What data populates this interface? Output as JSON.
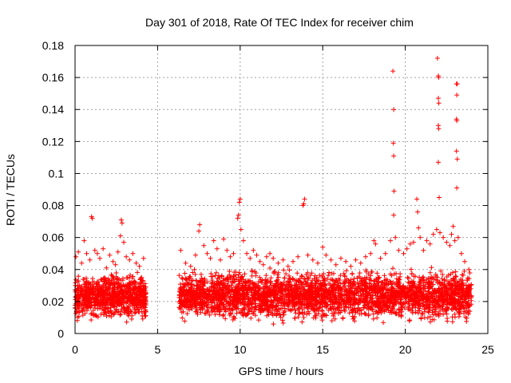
{
  "chart_data": {
    "type": "scatter",
    "title": "Day 301 of 2018, Rate Of TEC Index for receiver chim",
    "xlabel": "GPS time / hours",
    "ylabel": "ROTI / TECUs",
    "xlim": [
      0,
      25
    ],
    "ylim": [
      0,
      0.18
    ],
    "x_ticks": [
      0,
      5,
      10,
      15,
      20,
      25
    ],
    "x_tick_labels": [
      "0",
      "5",
      "10",
      "15",
      "20",
      "25"
    ],
    "y_ticks": [
      0,
      0.02,
      0.04,
      0.06,
      0.08,
      0.1,
      0.12,
      0.14,
      0.16,
      0.18
    ],
    "y_tick_labels": [
      "0",
      "0.02",
      "0.04",
      "0.06",
      "0.08",
      "0.1",
      "0.12",
      "0.14",
      "0.16",
      "0.18"
    ],
    "grid": true,
    "marker": "plus",
    "color": "#ff0000",
    "dense_bands": [
      {
        "x_start": 0.0,
        "x_end": 4.3,
        "y_low": 0.006,
        "y_high": 0.036,
        "density": 900
      },
      {
        "x_start": 6.3,
        "x_end": 24.0,
        "y_low": 0.005,
        "y_high": 0.038,
        "density": 3200
      }
    ],
    "series": [
      {
        "name": "ROTI",
        "points": [
          [
            0.05,
            0.048
          ],
          [
            0.2,
            0.051
          ],
          [
            0.4,
            0.044
          ],
          [
            0.55,
            0.058
          ],
          [
            0.7,
            0.05
          ],
          [
            0.9,
            0.046
          ],
          [
            1.0,
            0.073
          ],
          [
            1.05,
            0.072
          ],
          [
            1.2,
            0.052
          ],
          [
            1.35,
            0.05
          ],
          [
            1.5,
            0.047
          ],
          [
            1.7,
            0.053
          ],
          [
            1.9,
            0.041
          ],
          [
            2.1,
            0.049
          ],
          [
            2.3,
            0.045
          ],
          [
            2.45,
            0.043
          ],
          [
            2.6,
            0.051
          ],
          [
            2.75,
            0.061
          ],
          [
            2.8,
            0.071
          ],
          [
            2.85,
            0.069
          ],
          [
            2.95,
            0.057
          ],
          [
            3.1,
            0.048
          ],
          [
            3.3,
            0.046
          ],
          [
            3.5,
            0.05
          ],
          [
            3.7,
            0.044
          ],
          [
            3.9,
            0.042
          ],
          [
            4.15,
            0.047
          ],
          [
            6.4,
            0.052
          ],
          [
            6.7,
            0.044
          ],
          [
            7.0,
            0.042
          ],
          [
            7.3,
            0.049
          ],
          [
            7.5,
            0.064
          ],
          [
            7.55,
            0.068
          ],
          [
            7.8,
            0.055
          ],
          [
            8.0,
            0.05
          ],
          [
            8.2,
            0.047
          ],
          [
            8.4,
            0.058
          ],
          [
            8.6,
            0.053
          ],
          [
            8.8,
            0.046
          ],
          [
            9.0,
            0.059
          ],
          [
            9.2,
            0.052
          ],
          [
            9.4,
            0.048
          ],
          [
            9.6,
            0.05
          ],
          [
            9.85,
            0.072
          ],
          [
            9.9,
            0.074
          ],
          [
            9.95,
            0.082
          ],
          [
            10.0,
            0.084
          ],
          [
            10.05,
            0.065
          ],
          [
            10.2,
            0.058
          ],
          [
            10.4,
            0.05
          ],
          [
            10.6,
            0.047
          ],
          [
            10.8,
            0.052
          ],
          [
            11.0,
            0.049
          ],
          [
            11.2,
            0.045
          ],
          [
            11.4,
            0.043
          ],
          [
            11.6,
            0.048
          ],
          [
            11.8,
            0.05
          ],
          [
            12.0,
            0.047
          ],
          [
            12.3,
            0.044
          ],
          [
            12.6,
            0.046
          ],
          [
            12.9,
            0.042
          ],
          [
            13.2,
            0.045
          ],
          [
            13.5,
            0.048
          ],
          [
            13.8,
            0.08
          ],
          [
            13.85,
            0.081
          ],
          [
            13.9,
            0.084
          ],
          [
            14.1,
            0.049
          ],
          [
            14.4,
            0.046
          ],
          [
            14.7,
            0.044
          ],
          [
            15.0,
            0.054
          ],
          [
            15.2,
            0.049
          ],
          [
            15.5,
            0.046
          ],
          [
            15.8,
            0.043
          ],
          [
            16.1,
            0.047
          ],
          [
            16.4,
            0.045
          ],
          [
            16.7,
            0.042
          ],
          [
            17.0,
            0.046
          ],
          [
            17.3,
            0.044
          ],
          [
            17.6,
            0.048
          ],
          [
            17.9,
            0.05
          ],
          [
            18.1,
            0.058
          ],
          [
            18.2,
            0.056
          ],
          [
            18.5,
            0.047
          ],
          [
            18.8,
            0.05
          ],
          [
            19.1,
            0.058
          ],
          [
            19.25,
            0.164
          ],
          [
            19.3,
            0.14
          ],
          [
            19.28,
            0.119
          ],
          [
            19.3,
            0.111
          ],
          [
            19.32,
            0.089
          ],
          [
            19.3,
            0.074
          ],
          [
            19.4,
            0.06
          ],
          [
            19.6,
            0.052
          ],
          [
            19.9,
            0.05
          ],
          [
            20.1,
            0.053
          ],
          [
            20.3,
            0.056
          ],
          [
            20.5,
            0.057
          ],
          [
            20.7,
            0.084
          ],
          [
            20.75,
            0.076
          ],
          [
            20.8,
            0.066
          ],
          [
            20.9,
            0.06
          ],
          [
            21.1,
            0.052
          ],
          [
            21.3,
            0.058
          ],
          [
            21.5,
            0.056
          ],
          [
            21.7,
            0.062
          ],
          [
            21.9,
            0.065
          ],
          [
            21.95,
            0.172
          ],
          [
            22.0,
            0.161
          ],
          [
            22.02,
            0.16
          ],
          [
            22.0,
            0.147
          ],
          [
            22.03,
            0.144
          ],
          [
            22.0,
            0.13
          ],
          [
            22.02,
            0.128
          ],
          [
            22.0,
            0.107
          ],
          [
            22.05,
            0.085
          ],
          [
            22.1,
            0.063
          ],
          [
            22.3,
            0.06
          ],
          [
            22.5,
            0.057
          ],
          [
            22.7,
            0.055
          ],
          [
            22.8,
            0.062
          ],
          [
            22.9,
            0.067
          ],
          [
            23.0,
            0.058
          ],
          [
            23.1,
            0.156
          ],
          [
            23.15,
            0.156
          ],
          [
            23.12,
            0.149
          ],
          [
            23.1,
            0.134
          ],
          [
            23.12,
            0.133
          ],
          [
            23.1,
            0.114
          ],
          [
            23.15,
            0.109
          ],
          [
            23.12,
            0.091
          ],
          [
            23.2,
            0.06
          ],
          [
            23.4,
            0.05
          ],
          [
            23.6,
            0.045
          ],
          [
            23.85,
            0.04
          ]
        ]
      }
    ]
  }
}
